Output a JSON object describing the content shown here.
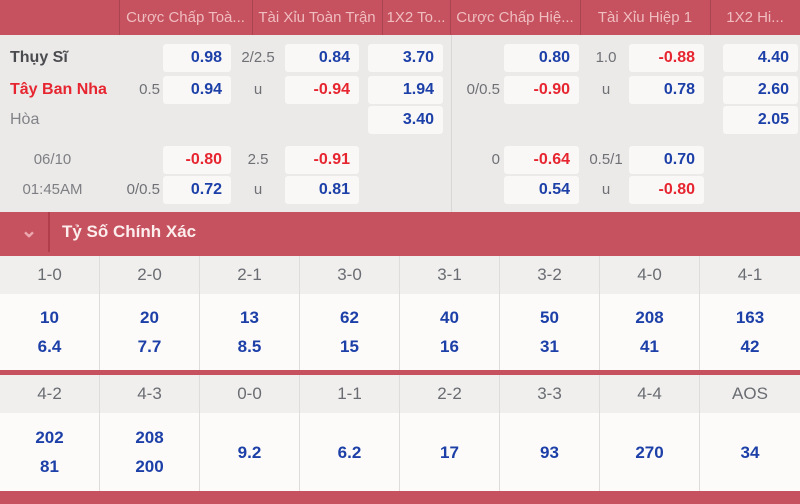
{
  "colors": {
    "accent_red": "#c5525e",
    "odds_blue": "#1c3fa8",
    "odds_negative_red": "#e72530"
  },
  "odds_header": {
    "columns": [
      "Cược Chấp Toà...",
      "Tài Xỉu Toàn Trận",
      "1X2 To...",
      "Cược Chấp Hiệ...",
      "Tài Xỉu Hiệp 1",
      "1X2 Hi..."
    ]
  },
  "match": {
    "home_team": "Thụy Sĩ",
    "away_team": "Tây Ban Nha",
    "draw_label": "Hòa",
    "date": "06/10",
    "time": "01:45AM"
  },
  "odds": {
    "rows": [
      {
        "label": "Thụy Sĩ",
        "label_class": "home",
        "label_name": "team-name-home",
        "hdp1": "",
        "o1": "0.98",
        "tx1": "2/2.5",
        "o2": "0.84",
        "x12": "3.70",
        "hdp2": "",
        "o3": "0.80",
        "tx2": "1.0",
        "o4": "-0.88",
        "x12h": "4.40"
      },
      {
        "label": "Tây Ban Nha",
        "label_class": "away",
        "label_name": "team-name-away",
        "hdp1": "0.5",
        "o1": "0.94",
        "tx1": "u",
        "o2": "-0.94",
        "x12": "1.94",
        "hdp2": "0/0.5",
        "o3": "-0.90",
        "tx2": "u",
        "o4": "0.78",
        "x12h": "2.60"
      },
      {
        "label": "Hòa",
        "label_class": "draw",
        "label_name": "draw-label",
        "hdp1": "",
        "o1": "",
        "tx1": "",
        "o2": "",
        "x12": "3.40",
        "hdp2": "",
        "o3": "",
        "tx2": "",
        "o4": "",
        "x12h": "2.05"
      },
      {
        "label": "06/10",
        "label_class": "date",
        "label_name": "match-date",
        "hdp1": "",
        "o1": "-0.80",
        "tx1": "2.5",
        "o2": "-0.91",
        "x12": "",
        "hdp2": "0",
        "o3": "-0.64",
        "tx2": "0.5/1",
        "o4": "0.70",
        "x12h": ""
      },
      {
        "label": "01:45AM",
        "label_class": "date",
        "label_name": "match-time",
        "hdp1": "0/0.5",
        "o1": "0.72",
        "tx1": "u",
        "o2": "0.81",
        "x12": "",
        "hdp2": "",
        "o3": "0.54",
        "tx2": "u",
        "o4": "-0.80",
        "x12h": ""
      }
    ]
  },
  "score_section": {
    "title": "Tỷ Số Chính Xác",
    "chevron_icon": "chevron-down-icon"
  },
  "chart_data": {
    "type": "table",
    "title": "Tỷ Số Chính Xác",
    "sections": [
      {
        "headers": [
          "1-0",
          "2-0",
          "2-1",
          "3-0",
          "3-1",
          "3-2",
          "4-0",
          "4-1"
        ],
        "cells": [
          [
            "10",
            "6.4"
          ],
          [
            "20",
            "7.7"
          ],
          [
            "13",
            "8.5"
          ],
          [
            "62",
            "15"
          ],
          [
            "40",
            "16"
          ],
          [
            "50",
            "31"
          ],
          [
            "208",
            "41"
          ],
          [
            "163",
            "42"
          ]
        ]
      },
      {
        "headers": [
          "4-2",
          "4-3",
          "0-0",
          "1-1",
          "2-2",
          "3-3",
          "4-4",
          "AOS"
        ],
        "cells": [
          [
            "202",
            "81"
          ],
          [
            "208",
            "200"
          ],
          [
            "9.2"
          ],
          [
            "6.2"
          ],
          [
            "17"
          ],
          [
            "93"
          ],
          [
            "270"
          ],
          [
            "34"
          ]
        ]
      }
    ]
  }
}
